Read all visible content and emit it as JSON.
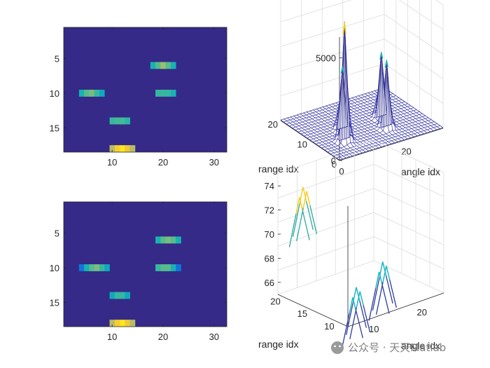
{
  "chart_data": [
    {
      "type": "heatmap",
      "title": "",
      "xlim": [
        0.5,
        32.5
      ],
      "ylim": [
        0.5,
        18.5
      ],
      "y_reversed": true,
      "xticks": [
        "10",
        "20",
        "30"
      ],
      "yticks": [
        "5",
        "10",
        "15"
      ],
      "colormap": "parula",
      "background_level": 0.0,
      "blobs": [
        {
          "row": 6,
          "cols": [
            18,
            19,
            20,
            21,
            22
          ],
          "levels": [
            0.45,
            0.55,
            0.65,
            0.55,
            0.45
          ]
        },
        {
          "row": 10,
          "cols": [
            4,
            5,
            6,
            7,
            8
          ],
          "levels": [
            0.45,
            0.55,
            0.6,
            0.5,
            0.4
          ]
        },
        {
          "row": 10,
          "cols": [
            19,
            20,
            21,
            22
          ],
          "levels": [
            0.5,
            0.5,
            0.5,
            0.45
          ]
        },
        {
          "row": 14,
          "cols": [
            10,
            11,
            12,
            13
          ],
          "levels": [
            0.5,
            0.52,
            0.52,
            0.48
          ]
        },
        {
          "row": 18,
          "cols": [
            10,
            11,
            12,
            13,
            14
          ],
          "levels": [
            0.7,
            0.88,
            0.95,
            0.85,
            0.7
          ]
        }
      ]
    },
    {
      "type": "surface",
      "zlim": [
        0,
        6000
      ],
      "zticks": [
        "0",
        "5000"
      ],
      "xticks": [
        "0",
        "20"
      ],
      "yticks": [
        "0",
        "10",
        "20"
      ],
      "xlabel": "angle idx",
      "ylabel": "range idx",
      "peaks": [
        {
          "angle": 7,
          "range": 6,
          "height": 5800
        },
        {
          "angle": 10,
          "range": 10,
          "height": 3100
        },
        {
          "angle": 20,
          "range": 6,
          "height": 3300
        },
        {
          "angle": 22,
          "range": 10,
          "height": 3200
        }
      ]
    },
    {
      "type": "heatmap",
      "title": "",
      "xlim": [
        0.5,
        32.5
      ],
      "ylim": [
        0.5,
        18.5
      ],
      "y_reversed": true,
      "xticks": [
        "10",
        "20",
        "30"
      ],
      "yticks": [
        "5",
        "10",
        "15"
      ],
      "colormap": "parula",
      "background_level": 0.0,
      "blobs": [
        {
          "row": 6,
          "cols": [
            19,
            20,
            21,
            22,
            23
          ],
          "levels": [
            0.45,
            0.55,
            0.6,
            0.55,
            0.45
          ]
        },
        {
          "row": 10,
          "cols": [
            4,
            5,
            6,
            7,
            8,
            9
          ],
          "levels": [
            0.2,
            0.45,
            0.55,
            0.6,
            0.5,
            0.4
          ]
        },
        {
          "row": 10,
          "cols": [
            19,
            20,
            21,
            22,
            23
          ],
          "levels": [
            0.5,
            0.55,
            0.55,
            0.45,
            0.2
          ]
        },
        {
          "row": 14,
          "cols": [
            10,
            11,
            12,
            13
          ],
          "levels": [
            0.4,
            0.5,
            0.5,
            0.4
          ]
        },
        {
          "row": 18,
          "cols": [
            10,
            11,
            12,
            13,
            14
          ],
          "levels": [
            0.7,
            0.88,
            0.95,
            0.85,
            0.7
          ]
        }
      ]
    },
    {
      "type": "line3d",
      "zlim": [
        65,
        75
      ],
      "zticks": [
        "66",
        "68",
        "70",
        "72",
        "74"
      ],
      "xticks": [
        "10",
        "20"
      ],
      "yticks": [
        "10",
        "15",
        "20"
      ],
      "ylabel": "range idx",
      "xlabel": "angle idx"
    }
  ],
  "watermark": "公众号 · 天天Matlab"
}
